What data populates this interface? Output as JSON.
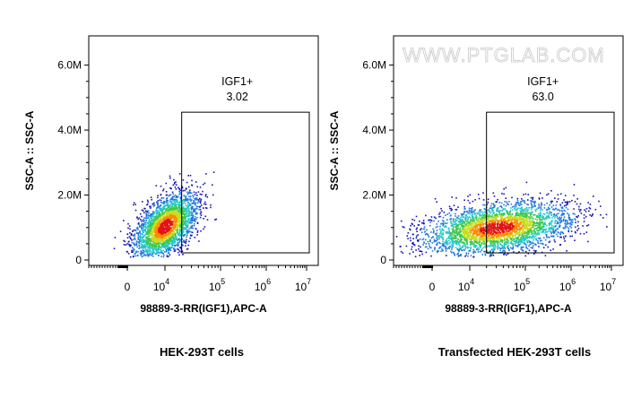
{
  "watermark": "WWW.PTGLAB.COM",
  "chart_data": [
    {
      "type": "scatter",
      "subtype": "flow-cytometry-density-dot-plot",
      "caption": "HEK-293T cells",
      "xlabel": "98889-3-RR(IGF1),APC-A",
      "ylabel": "SSC-A :: SSC-A",
      "x_scale": "biexponential",
      "x_ticks": [
        {
          "base": "0",
          "exp": ""
        },
        {
          "base": "10",
          "exp": "4"
        },
        {
          "base": "10",
          "exp": "5"
        },
        {
          "base": "10",
          "exp": "6"
        },
        {
          "base": "10",
          "exp": "7"
        }
      ],
      "y_ticks": [
        "0",
        "2.0M",
        "4.0M",
        "6.0M"
      ],
      "ylim": [
        0,
        6900000
      ],
      "gate": {
        "name": "IGF1+",
        "value": "3.02",
        "x_min": 20000,
        "x_max": 10000000,
        "y_min": 0,
        "y_max": 4550000
      },
      "population": {
        "x_center": 10000,
        "y_center": 1050000
      },
      "colors": [
        "#1414b4",
        "#1e78dc",
        "#23c8c8",
        "#3cc850",
        "#c8dc1e",
        "#ff8c00",
        "#e11414"
      ]
    },
    {
      "type": "scatter",
      "subtype": "flow-cytometry-density-dot-plot",
      "caption": "Transfected HEK-293T cells",
      "xlabel": "98889-3-RR(IGF1),APC-A",
      "ylabel": "SSC-A :: SSC-A",
      "x_scale": "biexponential",
      "x_ticks": [
        {
          "base": "0",
          "exp": ""
        },
        {
          "base": "10",
          "exp": "4"
        },
        {
          "base": "10",
          "exp": "5"
        },
        {
          "base": "10",
          "exp": "6"
        },
        {
          "base": "10",
          "exp": "7"
        }
      ],
      "y_ticks": [
        "0",
        "2.0M",
        "4.0M",
        "6.0M"
      ],
      "ylim": [
        0,
        6900000
      ],
      "gate": {
        "name": "IGF1+",
        "value": "63.0",
        "x_min": 20000,
        "x_max": 10000000,
        "y_min": 0,
        "y_max": 4550000
      },
      "population": {
        "x_center": 30000,
        "y_center": 1000000
      },
      "colors": [
        "#1414b4",
        "#1e78dc",
        "#23c8c8",
        "#3cc850",
        "#c8dc1e",
        "#ff8c00",
        "#e11414"
      ]
    }
  ]
}
